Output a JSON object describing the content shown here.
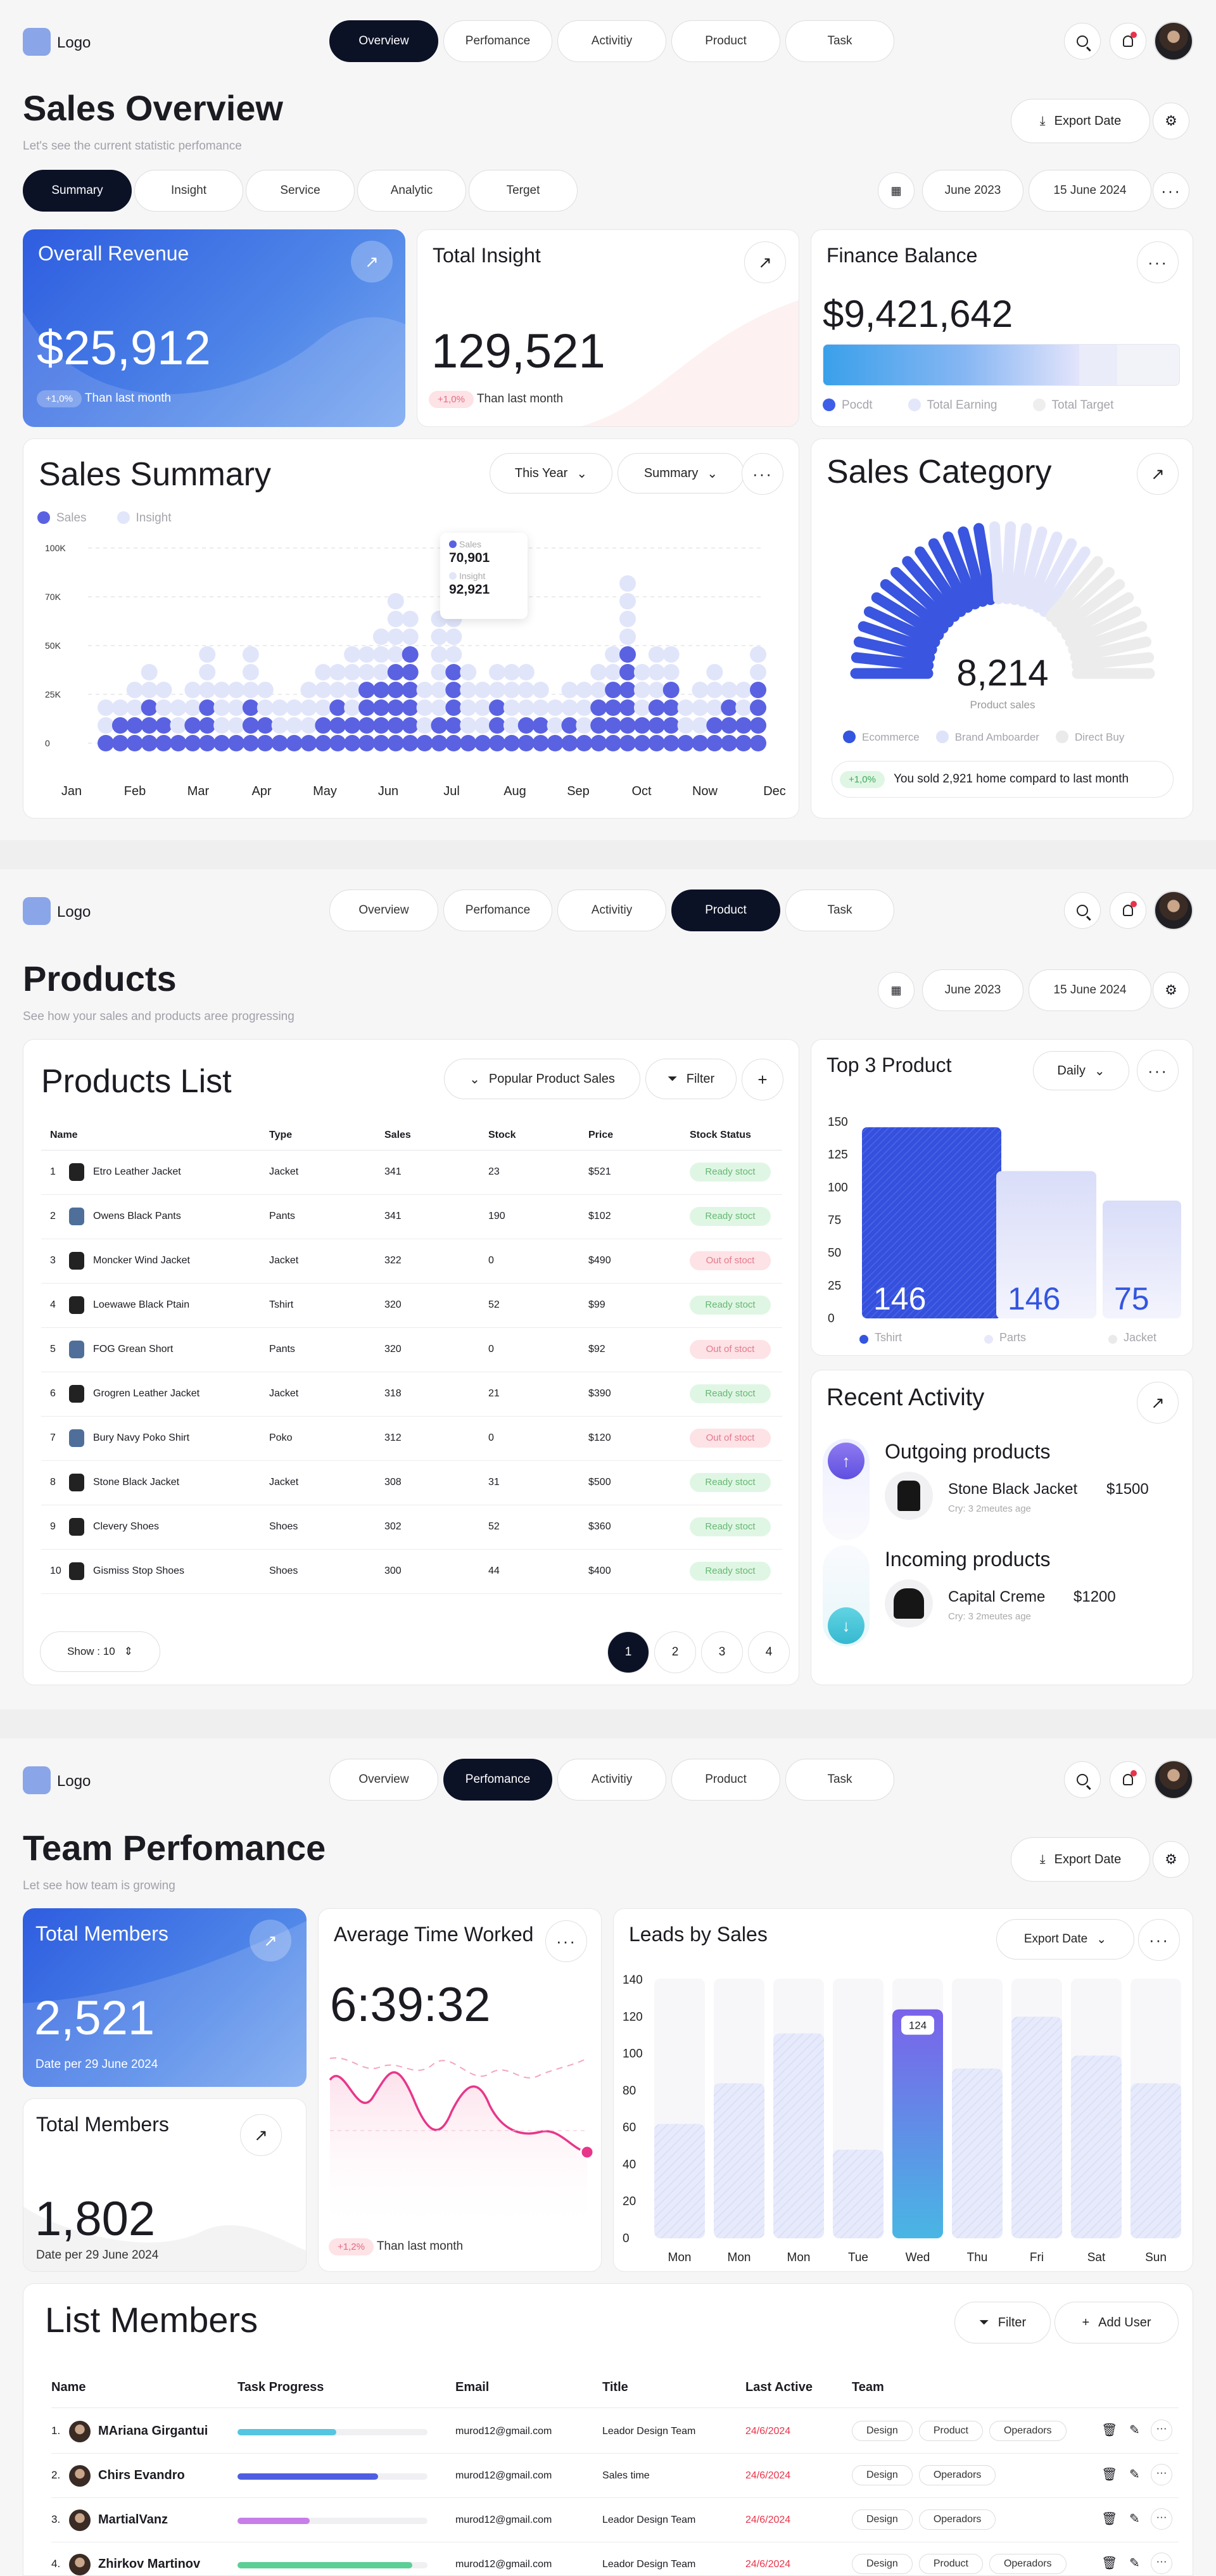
{
  "logo": "Logo",
  "nav": [
    "Overview",
    "Perfomance",
    "Activitiy",
    "Product",
    "Task"
  ],
  "s1": {
    "title": "Sales Overview",
    "subtitle": "Let's see the current statistic perfomance",
    "export": "Export Date",
    "tabs": [
      "Summary",
      "Insight",
      "Service",
      "Analytic",
      "Terget"
    ],
    "date_from": "June 2023",
    "date_to": "15 June 2024",
    "revenue": {
      "title": "Overall Revenue",
      "value": "$25,912",
      "badge": "+1,0%",
      "note": "Than last month"
    },
    "insight": {
      "title": "Total Insight",
      "value": "129,521",
      "badge": "+1,0%",
      "note": "Than last month"
    },
    "finance": {
      "title": "Finance Balance",
      "value": "$9,421,642",
      "legend": [
        "Pocdt",
        "Total Earning",
        "Total Target"
      ]
    },
    "summary": {
      "title": "Sales Summary",
      "year": "This Year",
      "mode": "Summary",
      "legend": [
        "Sales",
        "Insight"
      ],
      "tooltip": {
        "l1": "Sales",
        "v1": "70,901",
        "l2": "Insight",
        "v2": "92,921"
      }
    },
    "category": {
      "title": "Sales Category",
      "value": "8,214",
      "label": "Product sales",
      "legend": [
        "Ecommerce",
        "Brand Amboarder",
        "Direct Buy"
      ],
      "badge": "+1,0%",
      "note": "You sold 2,921 home compard to last month"
    }
  },
  "chart_data": [
    {
      "type": "scatter",
      "title": "Sales Summary",
      "y_ticks": [
        "100K",
        "70K",
        "50K",
        "25K",
        "0"
      ],
      "categories": [
        "Jan",
        "Feb",
        "Mar",
        "Apr",
        "May",
        "Jun",
        "Jul",
        "Aug",
        "Sep",
        "Oct",
        "Now",
        "Dec"
      ],
      "series": [
        {
          "name": "Sales",
          "values": [
            1,
            2,
            2,
            3,
            2,
            1,
            2,
            3,
            1,
            1,
            3,
            2,
            1,
            1,
            1,
            2,
            3,
            2,
            4,
            4,
            5,
            6,
            1,
            2,
            5,
            1,
            1,
            3,
            1,
            2,
            2,
            1,
            2,
            1,
            3,
            4,
            6,
            2,
            3,
            4,
            1,
            1,
            2,
            3,
            2,
            4
          ]
        },
        {
          "name": "Insight",
          "values": [
            3,
            3,
            4,
            5,
            4,
            3,
            4,
            6,
            4,
            4,
            6,
            4,
            3,
            3,
            4,
            5,
            5,
            6,
            6,
            7,
            9,
            8,
            4,
            8,
            9,
            5,
            4,
            5,
            5,
            5,
            4,
            3,
            4,
            4,
            5,
            6,
            10,
            5,
            6,
            6,
            3,
            4,
            5,
            4,
            4,
            6
          ]
        }
      ]
    },
    {
      "type": "bar",
      "title": "Top 3 Product",
      "y_ticks": [
        "150",
        "125",
        "100",
        "75",
        "50",
        "25",
        "0"
      ],
      "categories": [
        "Tshirt",
        "Parts",
        "Jacket"
      ],
      "values": [
        146,
        146,
        75
      ]
    },
    {
      "type": "bar",
      "title": "Leads by Sales",
      "y_ticks": [
        "140",
        "120",
        "100",
        "80",
        "60",
        "40",
        "20",
        "0"
      ],
      "categories": [
        "Mon",
        "Mon",
        "Mon",
        "Tue",
        "Wed",
        "Thu",
        "Fri",
        "Sat",
        "Sun"
      ],
      "values": [
        62,
        84,
        111,
        48,
        124,
        92,
        120,
        99,
        84
      ],
      "highlight_label": "124"
    }
  ],
  "s2": {
    "title": "Products",
    "subtitle": "See how your sales and products aree progressing",
    "date_from": "June 2023",
    "date_to": "15 June 2024",
    "list_title": "Products List",
    "popular": "Popular Product Sales",
    "filter": "Filter",
    "headers": [
      "Name",
      "Type",
      "Sales",
      "Stock",
      "Price",
      "Stock Status"
    ],
    "rows": [
      [
        "1",
        "Etro Leather Jacket",
        "Jacket",
        "341",
        "23",
        "$521",
        "Ready stoct"
      ],
      [
        "2",
        "Owens Black Pants",
        "Pants",
        "341",
        "190",
        "$102",
        "Ready stoct"
      ],
      [
        "3",
        "Moncker Wind Jacket",
        "Jacket",
        "322",
        "0",
        "$490",
        "Out of stoct"
      ],
      [
        "4",
        "Loewawe Black Ptain",
        "Tshirt",
        "320",
        "52",
        "$99",
        "Ready stoct"
      ],
      [
        "5",
        "FOG Grean Short",
        "Pants",
        "320",
        "0",
        "$92",
        "Out of stoct"
      ],
      [
        "6",
        "Grogren Leather Jacket",
        "Jacket",
        "318",
        "21",
        "$390",
        "Ready stoct"
      ],
      [
        "7",
        "Bury Navy Poko Shirt",
        "Poko",
        "312",
        "0",
        "$120",
        "Out of stoct"
      ],
      [
        "8",
        "Stone Black Jacket",
        "Jacket",
        "308",
        "31",
        "$500",
        "Ready stoct"
      ],
      [
        "9",
        "Clevery Shoes",
        "Shoes",
        "302",
        "52",
        "$360",
        "Ready stoct"
      ],
      [
        "10",
        "Gismiss Stop Shoes",
        "Shoes",
        "300",
        "44",
        "$400",
        "Ready stoct"
      ]
    ],
    "show": "Show : 10",
    "pages": [
      "1",
      "2",
      "3",
      "4"
    ],
    "top3": {
      "title": "Top 3 Product",
      "period": "Daily",
      "labels": [
        "146",
        "146",
        "75"
      ],
      "legend": [
        "Tshirt",
        "Parts",
        "Jacket"
      ]
    },
    "activity": {
      "title": "Recent Activity",
      "items": [
        {
          "heading": "Outgoing products",
          "name": "Stone Black Jacket",
          "price": "$1500",
          "meta": "Cry: 3 2meutes age"
        },
        {
          "heading": "Incoming products",
          "name": "Capital Creme",
          "price": "$1200",
          "meta": "Cry: 3 2meutes age"
        }
      ]
    }
  },
  "s3": {
    "title": "Team Perfomance",
    "subtitle": "Let see how team is growing",
    "export": "Export Date",
    "members1": {
      "title": "Total Members",
      "value": "2,521",
      "note": "Date per 29 June 2024"
    },
    "members2": {
      "title": "Total Members",
      "value": "1,802",
      "note": "Date per 29 June 2024"
    },
    "avg": {
      "title": "Average Time Worked",
      "value": "6:39:32",
      "badge": "+1,2%",
      "note": "Than last month"
    },
    "leads": {
      "title": "Leads by Sales",
      "export": "Export Date"
    },
    "list": {
      "title": "List Members",
      "filter": "Filter",
      "add": "Add User",
      "headers": [
        "Name",
        "Task Progress",
        "Email",
        "Title",
        "Last Active",
        "Team"
      ],
      "rows": [
        {
          "n": "1.",
          "name": "MAriana Girgantui",
          "email": "murod12@gmail.com",
          "title": "Leador Design Team",
          "active": "24/6/2024",
          "teams": [
            "Design",
            "Product",
            "Operadors"
          ],
          "progress": 0.52,
          "color": "#56c6e0"
        },
        {
          "n": "2.",
          "name": "Chirs Evandro",
          "email": "murod12@gmail.com",
          "title": "Sales time",
          "active": "24/6/2024",
          "teams": [
            "Design",
            "Operadors"
          ],
          "progress": 0.74,
          "color": "#4d5fe0"
        },
        {
          "n": "3.",
          "name": "MartialVanz",
          "email": "murod12@gmail.com",
          "title": "Leador Design Team",
          "active": "24/6/2024",
          "teams": [
            "Design",
            "Operadors"
          ],
          "progress": 0.38,
          "color": "#c77ee8"
        },
        {
          "n": "4.",
          "name": "Zhirkov Martinov",
          "email": "murod12@gmail.com",
          "title": "Leador Design Team",
          "active": "24/6/2024",
          "teams": [
            "Design",
            "Product",
            "Operadors"
          ],
          "progress": 0.92,
          "color": "#5ccf96"
        }
      ]
    }
  }
}
